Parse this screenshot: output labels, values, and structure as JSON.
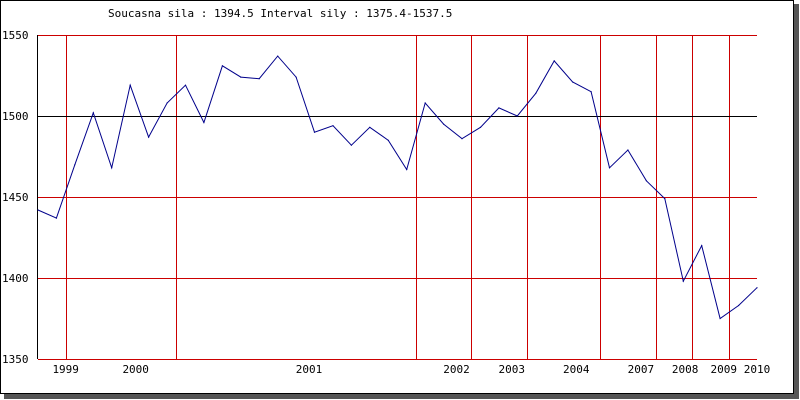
{
  "chart_data": {
    "type": "line",
    "title": "Soucasna sila : 1394.5  Interval sily : 1375.4-1537.5",
    "xlabel": "",
    "ylabel": "",
    "ylim": [
      1350,
      1550
    ],
    "y_ticks": [
      1550,
      1500,
      1450,
      1400,
      1350
    ],
    "reference_line": 1500,
    "grid": true,
    "colors": {
      "line": "#00008b",
      "grid": "#cc0000",
      "reference": "#000000",
      "frame": "#000000",
      "shadow": "#555555",
      "background": "#ffffff"
    },
    "x_labels": [
      {
        "label": "1999",
        "index": 1.5
      },
      {
        "label": "2000",
        "index": 5.3
      },
      {
        "label": "2001",
        "index": 14.7
      },
      {
        "label": "2002",
        "index": 22.7
      },
      {
        "label": "2003",
        "index": 25.7
      },
      {
        "label": "2004",
        "index": 29.2
      },
      {
        "label": "2007",
        "index": 32.7
      },
      {
        "label": "2008",
        "index": 35.1
      },
      {
        "label": "2009",
        "index": 37.2
      },
      {
        "label": "2010",
        "index": 39
      }
    ],
    "vertical_gridlines": [
      1.5,
      7.5,
      20.5,
      23.5,
      26.5,
      30.5,
      33.5,
      35.5,
      37.5
    ],
    "series": [
      {
        "values": [
          1442,
          1437,
          1470,
          1502,
          1468,
          1519,
          1487,
          1508,
          1519,
          1496,
          1531,
          1524,
          1523,
          1537,
          1524,
          1490,
          1494,
          1482,
          1493,
          1485,
          1467,
          1508,
          1495,
          1486,
          1493,
          1505,
          1500,
          1514,
          1534,
          1521,
          1515,
          1468,
          1479,
          1460,
          1449,
          1398,
          1420,
          1375,
          1383,
          1394
        ]
      }
    ]
  }
}
